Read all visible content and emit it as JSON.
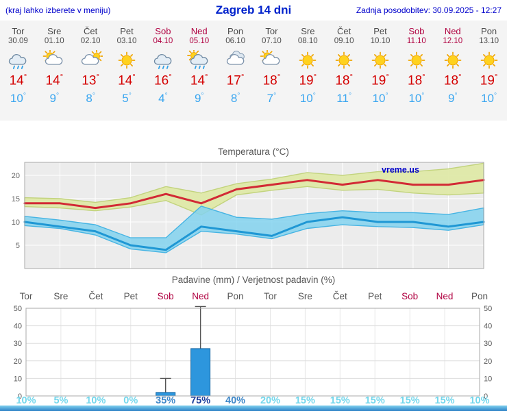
{
  "header": {
    "hint": "(kraj lahko izberete v meniju)",
    "title": "Zagreb 14 dni",
    "updated": "Zadnja posodobitev: 30.09.2025 - 12:27"
  },
  "colors": {
    "link_blue": "#0000cc",
    "weekend_red": "#b00040",
    "weekday_gray": "#4a4a4a",
    "tmax_red": "#d40000",
    "tmin_blue": "#3aa6f0",
    "bar_blue": "#2d96dd",
    "pct_low": "#74d7ec",
    "pct_mid": "#3e87c8",
    "pct_high": "#1c3e9b"
  },
  "days": [
    {
      "name": "Tor",
      "date": "30.09",
      "weekend": false,
      "icon": "rain",
      "tmax": 14,
      "tmin": 10
    },
    {
      "name": "Sre",
      "date": "01.10",
      "weekend": false,
      "icon": "sun-cloud",
      "tmax": 14,
      "tmin": 9
    },
    {
      "name": "Čet",
      "date": "02.10",
      "weekend": false,
      "icon": "cloud-sun",
      "tmax": 13,
      "tmin": 8
    },
    {
      "name": "Pet",
      "date": "03.10",
      "weekend": false,
      "icon": "sun",
      "tmax": 14,
      "tmin": 5
    },
    {
      "name": "Sob",
      "date": "04.10",
      "weekend": true,
      "icon": "rain",
      "tmax": 16,
      "tmin": 4
    },
    {
      "name": "Ned",
      "date": "05.10",
      "weekend": true,
      "icon": "rain-sun",
      "tmax": 14,
      "tmin": 9
    },
    {
      "name": "Pon",
      "date": "06.10",
      "weekend": false,
      "icon": "cloud",
      "tmax": 17,
      "tmin": 8
    },
    {
      "name": "Tor",
      "date": "07.10",
      "weekend": false,
      "icon": "sun-cloud",
      "tmax": 18,
      "tmin": 7
    },
    {
      "name": "Sre",
      "date": "08.10",
      "weekend": false,
      "icon": "sun",
      "tmax": 19,
      "tmin": 10
    },
    {
      "name": "Čet",
      "date": "09.10",
      "weekend": false,
      "icon": "sun",
      "tmax": 18,
      "tmin": 11
    },
    {
      "name": "Pet",
      "date": "10.10",
      "weekend": false,
      "icon": "sun",
      "tmax": 19,
      "tmin": 10
    },
    {
      "name": "Sob",
      "date": "11.10",
      "weekend": true,
      "icon": "sun",
      "tmax": 18,
      "tmin": 10
    },
    {
      "name": "Ned",
      "date": "12.10",
      "weekend": true,
      "icon": "sun",
      "tmax": 18,
      "tmin": 9
    },
    {
      "name": "Pon",
      "date": "13.10",
      "weekend": false,
      "icon": "sun",
      "tmax": 19,
      "tmin": 10
    }
  ],
  "chart_data": [
    {
      "type": "line",
      "title": "Temperatura (°C)",
      "watermark": "vreme.us",
      "ylim": [
        0,
        23
      ],
      "yticks": [
        5,
        10,
        15,
        20
      ],
      "categories": [
        "Tor 30.09",
        "Sre 01.10",
        "Čet 02.10",
        "Pet 03.10",
        "Sob 04.10",
        "Ned 05.10",
        "Pon 06.10",
        "Tor 07.10",
        "Sre 08.10",
        "Čet 09.10",
        "Pet 10.10",
        "Sob 11.10",
        "Ned 12.10",
        "Pon 13.10"
      ],
      "series": [
        {
          "name": "max temperature",
          "color": "#d22a35",
          "values": [
            14,
            14,
            13,
            14,
            16,
            14,
            17,
            18,
            19,
            18,
            19,
            18,
            18,
            19
          ]
        },
        {
          "name": "min temperature",
          "color": "#1f97d4",
          "values": [
            10,
            9,
            8,
            5,
            4,
            9,
            8,
            7,
            10,
            11,
            10,
            10,
            9,
            10
          ]
        }
      ],
      "bands": [
        {
          "name": "max range",
          "fill": "#dfe9a8",
          "stroke": "#c2d37d",
          "opacity": 0.95,
          "hi": [
            15.2,
            15,
            14.2,
            15.2,
            17.6,
            16.2,
            18.2,
            19.2,
            20.6,
            20,
            20.8,
            20.8,
            21.4,
            22.6
          ],
          "lo": [
            13.3,
            13,
            12.4,
            13.2,
            14.6,
            11.5,
            15.8,
            16.8,
            17.6,
            16.8,
            17,
            16.2,
            15.8,
            16.2
          ]
        },
        {
          "name": "min range",
          "fill": "#82d2ef",
          "stroke": "#46b4e3",
          "opacity": 0.85,
          "hi": [
            11.2,
            10.4,
            9.4,
            6.6,
            6.6,
            13.4,
            11,
            10.6,
            11.8,
            12.4,
            12,
            12,
            11.6,
            13
          ],
          "lo": [
            9.2,
            8.6,
            7.2,
            4.2,
            3.4,
            8,
            7.4,
            6.4,
            8.6,
            9.4,
            9,
            8.8,
            8.2,
            9.4
          ]
        }
      ],
      "grid": true,
      "legend": "none"
    },
    {
      "type": "bar",
      "title": "Padavine (mm) / Verjetnost padavin (%)",
      "ylim": [
        0,
        50
      ],
      "yticks": [
        0,
        10,
        20,
        30,
        40,
        50
      ],
      "categories": [
        "Tor",
        "Sre",
        "Čet",
        "Pet",
        "Sob",
        "Ned",
        "Pon",
        "Tor",
        "Sre",
        "Čet",
        "Pet",
        "Sob",
        "Ned",
        "Pon"
      ],
      "weekend": [
        false,
        false,
        false,
        false,
        true,
        true,
        false,
        false,
        false,
        false,
        false,
        true,
        true,
        false
      ],
      "precip_mm": [
        0,
        0,
        0,
        0,
        2,
        27,
        0,
        0,
        0,
        0,
        0,
        0,
        0,
        0
      ],
      "whisker_max_mm": [
        0,
        0,
        0,
        0,
        10,
        51,
        0,
        0,
        0,
        0,
        0,
        0,
        0,
        0
      ],
      "probability_pct": [
        10,
        5,
        10,
        0,
        35,
        75,
        40,
        20,
        15,
        15,
        15,
        15,
        15,
        10
      ],
      "grid": true,
      "legend": "none"
    }
  ]
}
